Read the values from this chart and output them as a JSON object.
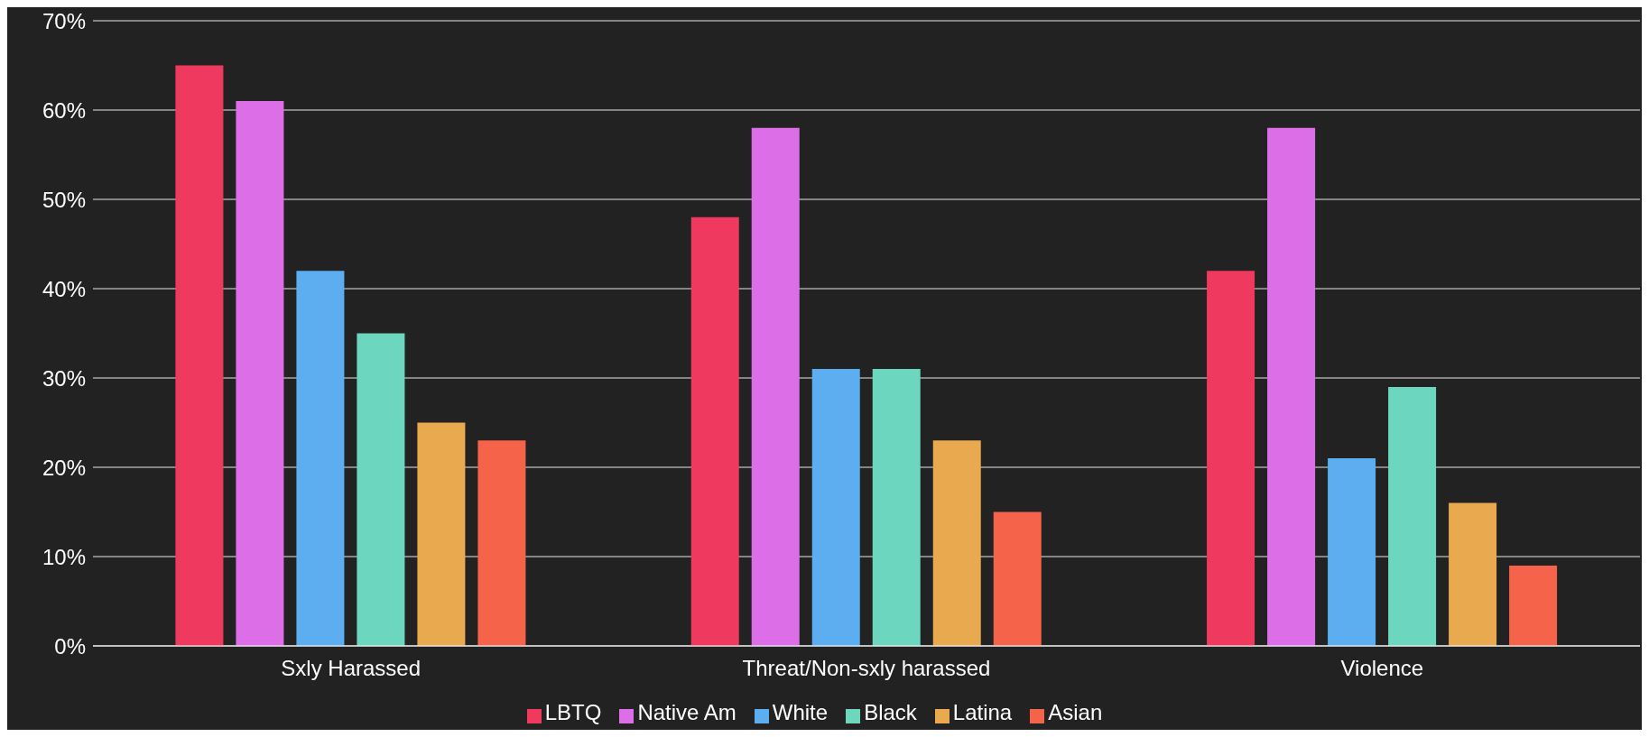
{
  "chart_data": {
    "type": "bar",
    "categories": [
      "Sxly Harassed",
      "Threat/Non-sxly harassed",
      "Violence"
    ],
    "series": [
      {
        "name": "LBTQ",
        "color": "#f0395f",
        "values": [
          65,
          48,
          42
        ]
      },
      {
        "name": "Native Am",
        "color": "#dc6fe8",
        "values": [
          61,
          58,
          58
        ]
      },
      {
        "name": "White",
        "color": "#5daef0",
        "values": [
          42,
          31,
          21
        ]
      },
      {
        "name": "Black",
        "color": "#6cd6be",
        "values": [
          35,
          31,
          29
        ]
      },
      {
        "name": "Latina",
        "color": "#e8a94f",
        "values": [
          25,
          23,
          16
        ]
      },
      {
        "name": "Asian",
        "color": "#f4634a",
        "values": [
          23,
          15,
          9
        ]
      }
    ],
    "ylim": [
      0,
      70
    ],
    "yticks": [
      {
        "value": 0,
        "label": "0%"
      },
      {
        "value": 10,
        "label": "10%"
      },
      {
        "value": 20,
        "label": "20%"
      },
      {
        "value": 30,
        "label": "30%"
      },
      {
        "value": 40,
        "label": "40%"
      },
      {
        "value": 50,
        "label": "50%"
      },
      {
        "value": 60,
        "label": "60%"
      },
      {
        "value": 70,
        "label": "70%"
      }
    ],
    "grid": "y",
    "legend": "bottom"
  }
}
